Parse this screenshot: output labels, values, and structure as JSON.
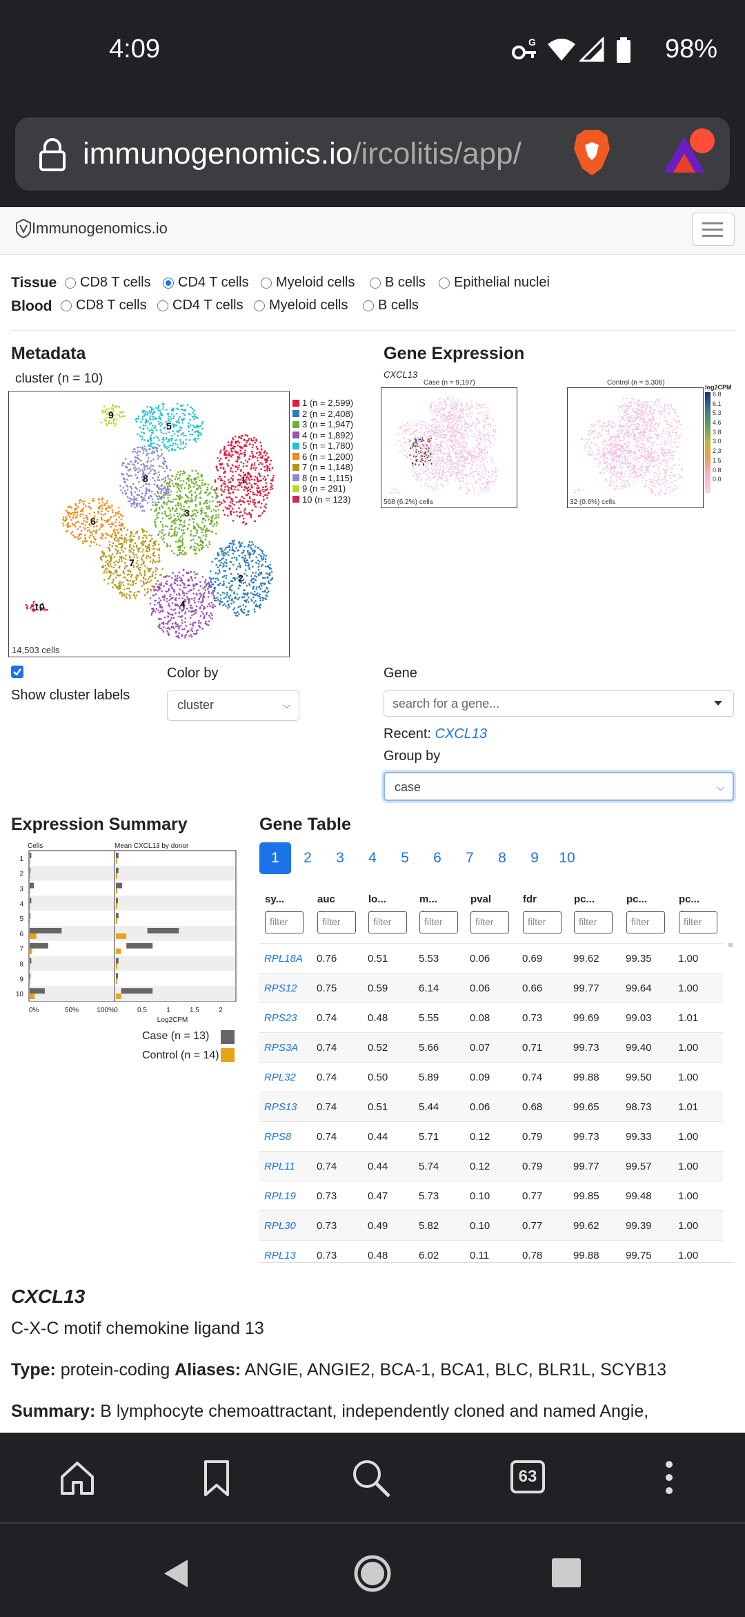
{
  "status": {
    "time": "4:09",
    "battery": "98%",
    "icons": [
      "key-icon",
      "wifi-icon",
      "signal-icon",
      "battery-icon"
    ]
  },
  "browser": {
    "url_host": "immunogenomics.io",
    "url_path": "/ircolitis/app/",
    "tabs_count": "63"
  },
  "site": {
    "brand": "Immunogenomics.io"
  },
  "tissue": {
    "label": "Tissue",
    "options": [
      "CD8 T cells",
      "CD4 T cells",
      "Myeloid cells",
      "B cells",
      "Epithelial nuclei"
    ],
    "selected": "CD4 T cells"
  },
  "blood": {
    "label": "Blood",
    "options": [
      "CD8 T cells",
      "CD4 T cells",
      "Myeloid cells",
      "B cells"
    ]
  },
  "metadata": {
    "title": "Metadata",
    "subtitle": "cluster (n = 10)",
    "cells_count": "14,503 cells",
    "legend": [
      {
        "id": "1",
        "label": "1 (n = 2,599)",
        "color": "#e8173a"
      },
      {
        "id": "2",
        "label": "2 (n = 2,408)",
        "color": "#2b7bba"
      },
      {
        "id": "3",
        "label": "3 (n = 1,947)",
        "color": "#6fb02f"
      },
      {
        "id": "4",
        "label": "4 (n = 1,892)",
        "color": "#9a4fb5"
      },
      {
        "id": "5",
        "label": "5 (n = 1,780)",
        "color": "#22c1d2"
      },
      {
        "id": "6",
        "label": "6 (n = 1,200)",
        "color": "#f08a18"
      },
      {
        "id": "7",
        "label": "7 (n = 1,148)",
        "color": "#b89514"
      },
      {
        "id": "8",
        "label": "8 (n = 1,115)",
        "color": "#8c87d0"
      },
      {
        "id": "9",
        "label": "9 (n = 291)",
        "color": "#b8d92a"
      },
      {
        "id": "10",
        "label": "10 (n = 123)",
        "color": "#d6245e"
      }
    ],
    "show_labels_label": "Show cluster labels",
    "color_by_label": "Color by",
    "color_by_value": "cluster"
  },
  "gene_expr": {
    "title": "Gene Expression",
    "gene": "CXCL13",
    "case_title": "Case (n = 9,197)",
    "case_cells": "568 (6.2%) cells",
    "control_title": "Control (n = 5,306)",
    "control_cells": "32 (0.6%) cells",
    "scale_title": "log2CPM",
    "scale_ticks": [
      "6.8",
      "6.1",
      "5.3",
      "4.6",
      "3.8",
      "3.0",
      "2.3",
      "1.5",
      "0.8",
      "0.0"
    ],
    "gene_label": "Gene",
    "gene_placeholder": "search for a gene...",
    "recent_label": "Recent:",
    "recent_gene": "CXCL13",
    "group_by_label": "Group by",
    "group_by_value": "case"
  },
  "expr_summary": {
    "title": "Expression Summary",
    "cells_title": "Cells",
    "mean_title": "Mean CXCL13 by donor",
    "cells_ticks": [
      "0%",
      "50%",
      "100%"
    ],
    "mean_ticks": [
      "0",
      "0.5",
      "1",
      "1.5",
      "2"
    ],
    "mean_xlabel": "Log2CPM",
    "rows": [
      "1",
      "2",
      "3",
      "4",
      "5",
      "6",
      "7",
      "8",
      "9",
      "10"
    ],
    "legend_case": "Case (n = 13)",
    "legend_control": "Control (n = 14)",
    "case_color": "#666666",
    "control_color": "#e6a417"
  },
  "gene_table": {
    "title": "Gene Table",
    "pages": [
      "1",
      "2",
      "3",
      "4",
      "5",
      "6",
      "7",
      "8",
      "9",
      "10"
    ],
    "columns": [
      "sy...",
      "auc",
      "lo...",
      "m...",
      "pval",
      "fdr",
      "pc...",
      "pc...",
      "pc..."
    ],
    "filter_placeholder": "filter",
    "rows": [
      [
        "RPL18A",
        "0.76",
        "0.51",
        "5.53",
        "0.06",
        "0.69",
        "99.62",
        "99.35",
        "1.00"
      ],
      [
        "RPS12",
        "0.75",
        "0.59",
        "6.14",
        "0.06",
        "0.66",
        "99.77",
        "99.64",
        "1.00"
      ],
      [
        "RPS23",
        "0.74",
        "0.48",
        "5.55",
        "0.08",
        "0.73",
        "99.69",
        "99.03",
        "1.01"
      ],
      [
        "RPS3A",
        "0.74",
        "0.52",
        "5.66",
        "0.07",
        "0.71",
        "99.73",
        "99.40",
        "1.00"
      ],
      [
        "RPL32",
        "0.74",
        "0.50",
        "5.89",
        "0.09",
        "0.74",
        "99.88",
        "99.50",
        "1.00"
      ],
      [
        "RPS13",
        "0.74",
        "0.51",
        "5.44",
        "0.06",
        "0.68",
        "99.65",
        "98.73",
        "1.01"
      ],
      [
        "RPS8",
        "0.74",
        "0.44",
        "5.71",
        "0.12",
        "0.79",
        "99.73",
        "99.33",
        "1.00"
      ],
      [
        "RPL11",
        "0.74",
        "0.44",
        "5.74",
        "0.12",
        "0.79",
        "99.77",
        "99.57",
        "1.00"
      ],
      [
        "RPL19",
        "0.73",
        "0.47",
        "5.73",
        "0.10",
        "0.77",
        "99.85",
        "99.48",
        "1.00"
      ],
      [
        "RPL30",
        "0.73",
        "0.49",
        "5.82",
        "0.10",
        "0.77",
        "99.62",
        "99.39",
        "1.00"
      ],
      [
        "RPL13",
        "0.73",
        "0.48",
        "6.02",
        "0.11",
        "0.78",
        "99.88",
        "99.75",
        "1.00"
      ]
    ]
  },
  "gene_info": {
    "symbol": "CXCL13",
    "name": "C-X-C motif chemokine ligand 13",
    "type_label": "Type:",
    "type_value": "protein-coding",
    "aliases_label": "Aliases:",
    "aliases_value": "ANGIE, ANGIE2, BCA-1, BCA1, BLC, BLR1L, SCYB13",
    "summary_label": "Summary:",
    "summary_value": "B lymphocyte chemoattractant, independently cloned and named Angie,"
  }
}
